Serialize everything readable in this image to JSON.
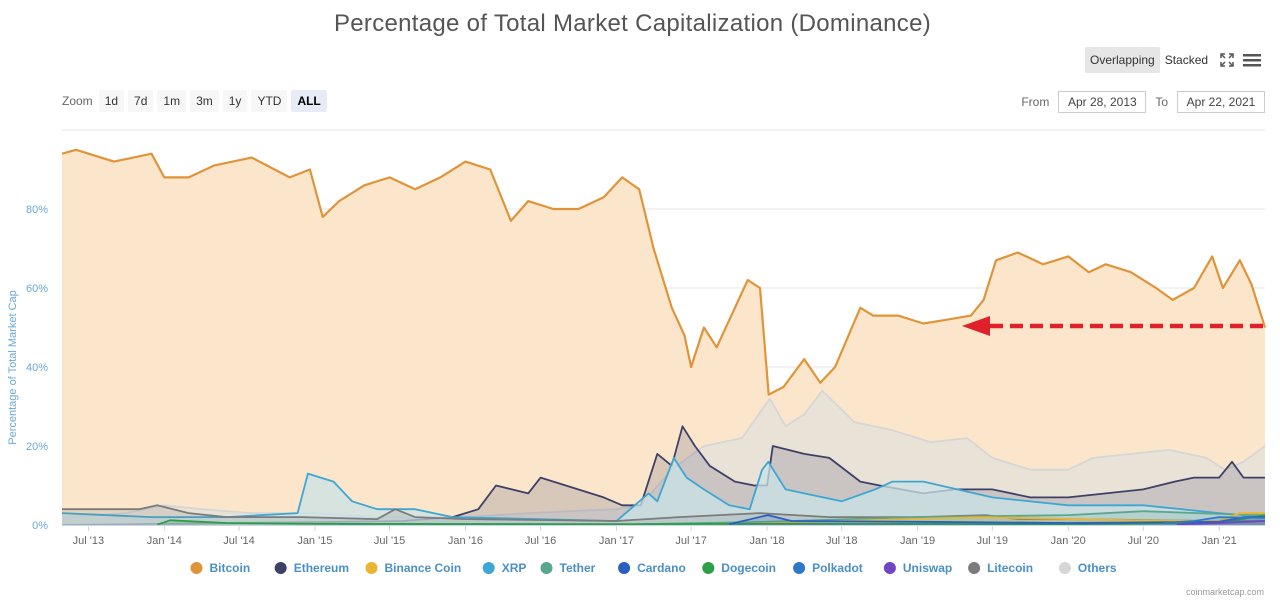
{
  "title": "Percentage of Total Market Capitalization (Dominance)",
  "modes": {
    "overlapping": "Overlapping",
    "stacked": "Stacked"
  },
  "icons": {
    "fullscreen": "fullscreen-icon",
    "menu": "menu-icon"
  },
  "zoom": {
    "label": "Zoom",
    "buttons": [
      "1d",
      "7d",
      "1m",
      "3m",
      "1y",
      "YTD",
      "ALL"
    ],
    "active": "ALL"
  },
  "range": {
    "from_label": "From",
    "from": "Apr 28, 2013",
    "to_label": "To",
    "to": "Apr 22, 2021"
  },
  "credit": "coinmarketcap.com",
  "chart_data": {
    "type": "area",
    "title": "Percentage of Total Market Capitalization (Dominance)",
    "ylabel": "Percentage of Total Market Cap",
    "ylim": [
      0,
      100
    ],
    "yticks": [
      0,
      20,
      40,
      60,
      80
    ],
    "ytick_labels": [
      "0%",
      "20%",
      "40%",
      "60%",
      "80%"
    ],
    "x_range": [
      "2013-04-28",
      "2021-04-22"
    ],
    "xticks": [
      "2013-07-01",
      "2014-01-01",
      "2014-07-01",
      "2015-01-01",
      "2015-07-01",
      "2016-01-01",
      "2016-07-01",
      "2017-01-01",
      "2017-07-01",
      "2018-01-01",
      "2018-07-01",
      "2019-01-01",
      "2019-07-01",
      "2020-01-01",
      "2020-07-01",
      "2021-01-01"
    ],
    "xtick_labels": [
      "Jul '13",
      "Jan '14",
      "Jul '14",
      "Jan '15",
      "Jul '15",
      "Jan '16",
      "Jul '16",
      "Jan '17",
      "Jul '17",
      "Jan '18",
      "Jul '18",
      "Jan '19",
      "Jul '19",
      "Jan '20",
      "Jul '20",
      "Jan '21"
    ],
    "legend_position": "bottom",
    "series": [
      {
        "name": "Bitcoin",
        "color": "#e0943a",
        "fill": "#fbe6cb",
        "x": [
          "2013-04-28",
          "2013-06-01",
          "2013-09-01",
          "2013-12-01",
          "2014-01-01",
          "2014-03-01",
          "2014-05-01",
          "2014-08-01",
          "2014-11-01",
          "2014-12-20",
          "2015-01-20",
          "2015-03-01",
          "2015-05-01",
          "2015-07-01",
          "2015-09-01",
          "2015-11-01",
          "2016-01-01",
          "2016-03-01",
          "2016-04-20",
          "2016-06-01",
          "2016-08-01",
          "2016-10-01",
          "2016-12-01",
          "2017-01-15",
          "2017-02-25",
          "2017-04-01",
          "2017-05-15",
          "2017-06-15",
          "2017-07-01",
          "2017-08-01",
          "2017-09-01",
          "2017-10-15",
          "2017-11-15",
          "2017-12-15",
          "2018-01-05",
          "2018-02-10",
          "2018-04-01",
          "2018-05-10",
          "2018-06-15",
          "2018-08-15",
          "2018-09-15",
          "2018-11-15",
          "2019-01-15",
          "2019-03-15",
          "2019-05-10",
          "2019-06-10",
          "2019-07-10",
          "2019-09-01",
          "2019-11-01",
          "2020-01-01",
          "2020-02-20",
          "2020-04-01",
          "2020-06-01",
          "2020-08-01",
          "2020-09-10",
          "2020-11-01",
          "2020-12-15",
          "2021-01-10",
          "2021-02-20",
          "2021-03-20",
          "2021-04-22"
        ],
        "values": [
          94,
          95,
          92,
          94,
          88,
          88,
          91,
          93,
          88,
          90,
          78,
          82,
          86,
          88,
          85,
          88,
          92,
          90,
          77,
          82,
          80,
          80,
          83,
          88,
          85,
          70,
          55,
          48,
          40,
          50,
          45,
          55,
          62,
          60,
          33,
          35,
          42,
          36,
          40,
          55,
          53,
          53,
          51,
          52,
          53,
          57,
          67,
          69,
          66,
          68,
          64,
          66,
          64,
          60,
          57,
          60,
          68,
          60,
          67,
          61,
          50
        ]
      },
      {
        "name": "Ethereum",
        "color": "#3f4068",
        "x": [
          "2013-04-28",
          "2015-08-01",
          "2015-12-01",
          "2016-02-01",
          "2016-03-15",
          "2016-06-01",
          "2016-07-01",
          "2016-12-01",
          "2017-01-15",
          "2017-03-01",
          "2017-04-10",
          "2017-05-15",
          "2017-06-10",
          "2017-07-10",
          "2017-08-15",
          "2017-10-15",
          "2017-12-01",
          "2018-01-01",
          "2018-01-15",
          "2018-04-01",
          "2018-06-01",
          "2018-08-15",
          "2018-10-01",
          "2019-01-15",
          "2019-04-01",
          "2019-07-01",
          "2019-10-01",
          "2020-01-01",
          "2020-04-01",
          "2020-07-01",
          "2020-09-15",
          "2020-11-01",
          "2021-01-01",
          "2021-02-01",
          "2021-03-01",
          "2021-04-22"
        ],
        "values": [
          0,
          1,
          2,
          4,
          10,
          8,
          12,
          7,
          5,
          5,
          18,
          15,
          25,
          20,
          15,
          11,
          10,
          10,
          20,
          18,
          17,
          11,
          10,
          8,
          9,
          9,
          7,
          7,
          8,
          9,
          11,
          12,
          12,
          16,
          12,
          12
        ]
      },
      {
        "name": "Binance Coin",
        "color": "#e9b633",
        "x": [
          "2017-07-20",
          "2018-01-01",
          "2019-06-01",
          "2020-06-01",
          "2021-01-01",
          "2021-02-20",
          "2021-04-22"
        ],
        "values": [
          0.1,
          0.5,
          2,
          1.2,
          1,
          3,
          3
        ]
      },
      {
        "name": "XRP",
        "color": "#3da6d2",
        "fill": "#c9e2e5",
        "x": [
          "2013-04-28",
          "2013-12-01",
          "2014-06-01",
          "2014-11-20",
          "2014-12-15",
          "2015-02-15",
          "2015-04-01",
          "2015-06-01",
          "2015-09-01",
          "2015-12-01",
          "2017-01-01",
          "2017-03-20",
          "2017-04-10",
          "2017-05-20",
          "2017-06-20",
          "2017-08-01",
          "2017-10-01",
          "2017-11-20",
          "2017-12-20",
          "2018-01-04",
          "2018-02-15",
          "2018-04-01",
          "2018-07-01",
          "2018-09-20",
          "2018-11-01",
          "2019-01-15",
          "2019-07-01",
          "2020-01-01",
          "2020-07-01",
          "2021-01-01",
          "2021-04-22"
        ],
        "values": [
          3,
          2,
          2,
          3,
          13,
          11,
          6,
          4,
          4,
          2,
          1,
          8,
          6,
          17,
          12,
          9,
          5,
          4,
          14,
          16,
          9,
          8,
          6,
          9,
          11,
          11,
          7,
          5,
          5,
          3,
          2
        ]
      },
      {
        "name": "Tether",
        "color": "#5aa68f",
        "x": [
          "2015-03-01",
          "2017-01-01",
          "2018-01-01",
          "2019-01-01",
          "2020-01-01",
          "2020-07-01",
          "2021-01-01",
          "2021-04-22"
        ],
        "values": [
          0,
          0.1,
          0.8,
          2,
          2.5,
          3.5,
          2.8,
          2.5
        ]
      },
      {
        "name": "Cardano",
        "color": "#2a5fc0",
        "x": [
          "2017-10-01",
          "2018-01-03",
          "2018-03-01",
          "2019-01-01",
          "2020-01-01",
          "2021-01-01",
          "2021-03-01",
          "2021-04-22"
        ],
        "values": [
          0.2,
          2.5,
          1,
          0.8,
          0.5,
          0.8,
          2,
          2
        ]
      },
      {
        "name": "Dogecoin",
        "color": "#2e9e48",
        "x": [
          "2013-12-15",
          "2014-01-15",
          "2014-06-01",
          "2015-01-01",
          "2017-01-01",
          "2018-01-01",
          "2020-01-01",
          "2021-01-01",
          "2021-04-22"
        ],
        "values": [
          0.1,
          1.2,
          0.5,
          0.3,
          0.2,
          0.3,
          0.2,
          0.5,
          2.5
        ]
      },
      {
        "name": "Polkadot",
        "color": "#2f78c8",
        "x": [
          "2020-08-20",
          "2020-11-01",
          "2021-01-01",
          "2021-04-22"
        ],
        "values": [
          0.5,
          1,
          2,
          1.8
        ]
      },
      {
        "name": "Uniswap",
        "color": "#7045c8",
        "x": [
          "2020-09-20",
          "2021-01-01",
          "2021-04-22"
        ],
        "values": [
          0.1,
          0.5,
          1
        ]
      },
      {
        "name": "Litecoin",
        "color": "#7b7b7b",
        "x": [
          "2013-04-28",
          "2013-11-01",
          "2013-12-15",
          "2014-03-01",
          "2014-06-01",
          "2014-12-01",
          "2015-06-01",
          "2015-07-15",
          "2015-09-01",
          "2016-01-01",
          "2017-01-01",
          "2017-06-01",
          "2017-12-15",
          "2018-06-01",
          "2019-01-01",
          "2019-06-15",
          "2019-09-01",
          "2020-01-01",
          "2021-01-01",
          "2021-04-22"
        ],
        "values": [
          4,
          4,
          5,
          3,
          2,
          2,
          1.5,
          4,
          2,
          1.5,
          1,
          2,
          3,
          2,
          2,
          2.5,
          1.5,
          1.5,
          1,
          1
        ]
      },
      {
        "name": "Others",
        "color": "#d6d6d6",
        "fill": "#e3e0da",
        "x": [
          "2013-04-28",
          "2013-10-01",
          "2014-01-01",
          "2014-04-01",
          "2014-08-01",
          "2015-01-01",
          "2015-06-01",
          "2016-01-01",
          "2016-06-01",
          "2017-01-01",
          "2017-03-01",
          "2017-05-15",
          "2017-08-01",
          "2017-11-01",
          "2018-01-08",
          "2018-02-15",
          "2018-04-01",
          "2018-05-15",
          "2018-08-01",
          "2018-11-01",
          "2019-02-01",
          "2019-05-01",
          "2019-07-01",
          "2019-10-01",
          "2020-01-01",
          "2020-03-01",
          "2020-06-01",
          "2020-09-01",
          "2020-12-01",
          "2021-01-15",
          "2021-03-01",
          "2021-04-22"
        ],
        "values": [
          2,
          3,
          5,
          4,
          3,
          3,
          2,
          2,
          3,
          4,
          5,
          14,
          20,
          22,
          32,
          25,
          28,
          34,
          26,
          24,
          21,
          22,
          17,
          14,
          14,
          17,
          18,
          19,
          17,
          14,
          16,
          20
        ]
      }
    ]
  }
}
